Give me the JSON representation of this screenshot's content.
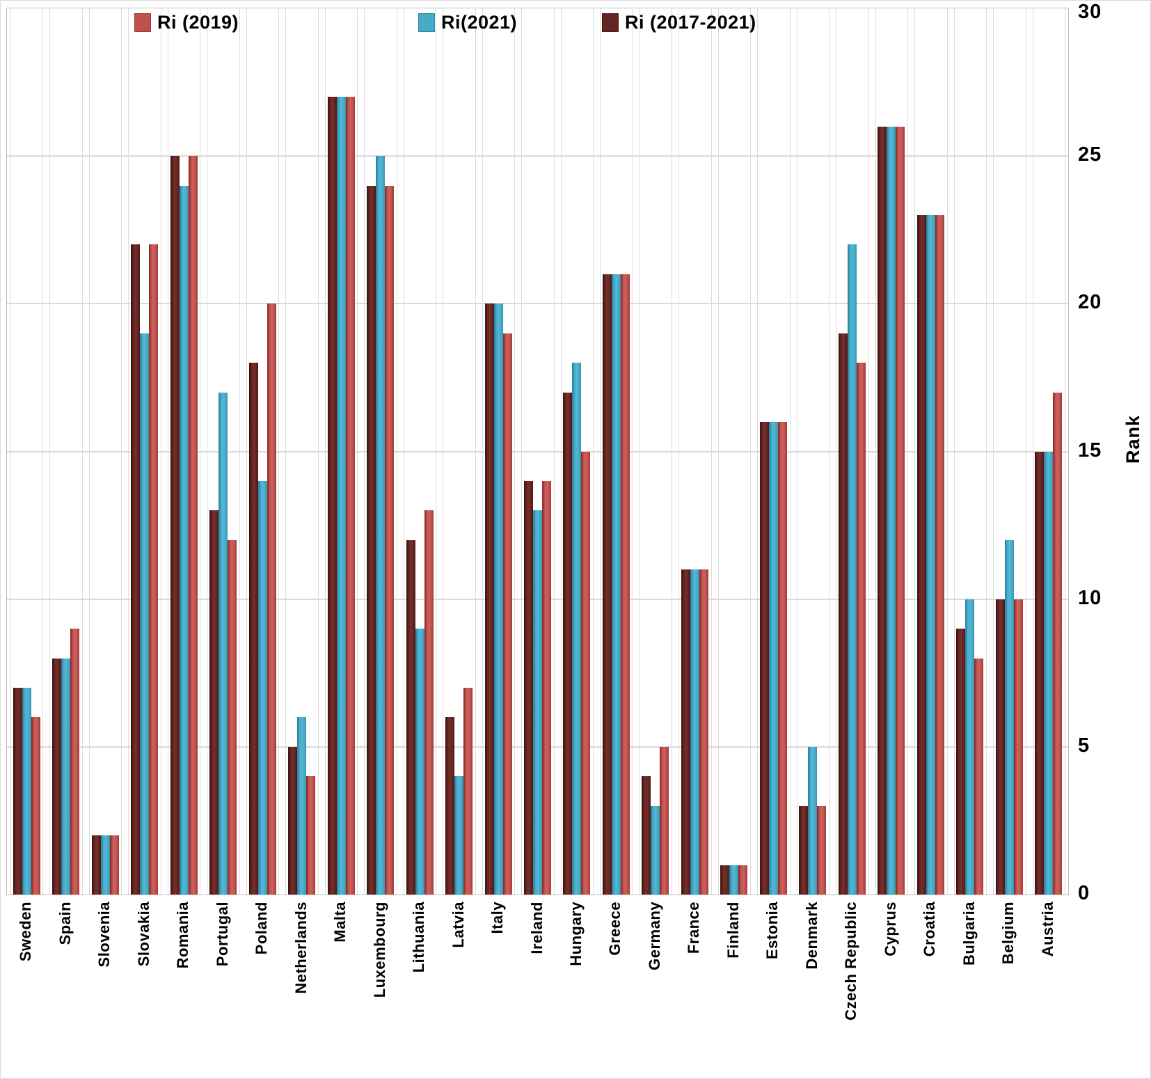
{
  "legend": {
    "items": [
      {
        "label": "Ri (2019)",
        "color": "#C0504D"
      },
      {
        "label": "Ri(2021)",
        "color": "#45ABC9"
      },
      {
        "label": "Ri (2017-2021)",
        "color": "#632423"
      }
    ]
  },
  "chart_data": {
    "type": "bar",
    "title": "",
    "xlabel": "",
    "ylabel": "Rank",
    "ylim": [
      0,
      30
    ],
    "yticks": [
      0,
      5,
      10,
      15,
      20,
      25,
      30
    ],
    "grid": true,
    "legend_position": "top",
    "categories": [
      "Sweden",
      "Spain",
      "Slovenia",
      "Slovakia",
      "Romania",
      "Portugal",
      "Poland",
      "Netherlands",
      "Malta",
      "Luxembourg",
      "Lithuania",
      "Latvia",
      "Italy",
      "Ireland",
      "Hungary",
      "Greece",
      "Germany",
      "France",
      "Finland",
      "Estonia",
      "Denmark",
      "Czech Republic",
      "Cyprus",
      "Croatia",
      "Bulgaria",
      "Belgium",
      "Austria"
    ],
    "series": [
      {
        "name": "Ri (2017-2021)",
        "color": "#632423",
        "values": [
          7,
          8,
          2,
          22,
          25,
          13,
          18,
          5,
          27,
          24,
          12,
          6,
          20,
          14,
          17,
          21,
          4,
          11,
          1,
          16,
          3,
          19,
          26,
          23,
          9,
          10,
          15
        ]
      },
      {
        "name": "Ri(2021)",
        "color": "#45ABC9",
        "values": [
          7,
          8,
          2,
          19,
          24,
          17,
          14,
          6,
          27,
          25,
          9,
          4,
          20,
          13,
          18,
          21,
          3,
          11,
          1,
          16,
          5,
          22,
          26,
          23,
          10,
          12,
          15
        ]
      },
      {
        "name": "Ri (2019)",
        "color": "#C0504D",
        "values": [
          6,
          9,
          2,
          22,
          25,
          12,
          20,
          4,
          27,
          24,
          13,
          7,
          19,
          14,
          15,
          21,
          5,
          11,
          1,
          16,
          3,
          18,
          26,
          23,
          8,
          10,
          17
        ]
      }
    ]
  }
}
